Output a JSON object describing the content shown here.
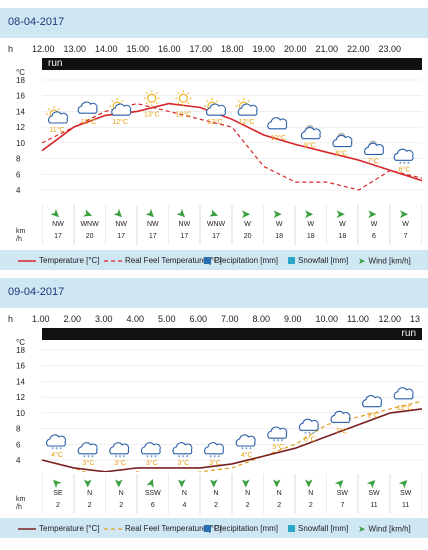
{
  "panels": [
    {
      "date": "08-04-2017",
      "hours_label": "h",
      "hours": [
        "12.00",
        "13.00",
        "14.00",
        "15.00",
        "16.00",
        "17.00",
        "18.00",
        "19.00",
        "20.00",
        "21.00",
        "22.00",
        "23.00"
      ],
      "run_label": "run",
      "unit_label": "°C",
      "y_ticks": [
        "18",
        "16",
        "14",
        "12",
        "10",
        "8",
        "6",
        "4"
      ],
      "icons": [
        {
          "name": "sun-cloud-icon",
          "temp": "11°C"
        },
        {
          "name": "cloud-icon",
          "temp": "12°C"
        },
        {
          "name": "sun-cloud-icon",
          "temp": "12°C"
        },
        {
          "name": "sun-icon",
          "temp": "13°C"
        },
        {
          "name": "sun-icon",
          "temp": "13°C"
        },
        {
          "name": "sun-cloud-icon",
          "temp": "12°C"
        },
        {
          "name": "sun-cloud-icon",
          "temp": "12°C"
        },
        {
          "name": "cloud-icon",
          "temp": "10°C"
        },
        {
          "name": "night-cloud-icon",
          "temp": "9°C"
        },
        {
          "name": "night-cloud-icon",
          "temp": "8°C"
        },
        {
          "name": "night-cloud-icon",
          "temp": "7°C"
        },
        {
          "name": "snow-cloud-icon",
          "temp": "6°C"
        }
      ],
      "wind_dirs": [
        "NW",
        "WNW",
        "NW",
        "NW",
        "NW",
        "WNW",
        "W",
        "W",
        "W",
        "W",
        "W",
        "W"
      ],
      "wind_speeds": [
        "17",
        "20",
        "17",
        "17",
        "17",
        "17",
        "20",
        "18",
        "18",
        "18",
        "6",
        "7"
      ],
      "wind_unit_top": "km",
      "wind_unit_bottom": "/h",
      "legend": {
        "temperature": "Temperature [°C]",
        "real_feel": "Real Feel Temperature [°C]",
        "precipitation": "Precipitation [mm]",
        "snowfall": "Snowfall [mm]",
        "wind": "Wind [km/h]"
      },
      "temperature_line": [
        9,
        12,
        13.5,
        14,
        15,
        14.5,
        13,
        11,
        9.8,
        8.8,
        7.8,
        6.5,
        5.2
      ],
      "realfeel_line": [
        10,
        12,
        14,
        15,
        14,
        13,
        12,
        7,
        5,
        5,
        4,
        6.5,
        5.5
      ]
    },
    {
      "date": "09-04-2017",
      "hours_label": "h",
      "hours": [
        "1.00",
        "2.00",
        "3.00",
        "4.00",
        "5.00",
        "6.00",
        "7.00",
        "8.00",
        "9.00",
        "10.00",
        "11.00",
        "12.00",
        "13"
      ],
      "run_label": "run",
      "unit_label": "°C",
      "y_ticks": [
        "18",
        "16",
        "14",
        "12",
        "10",
        "8",
        "6",
        "4"
      ],
      "icons": [
        {
          "name": "snow-cloud-icon",
          "temp": "4°C"
        },
        {
          "name": "snow-cloud-icon",
          "temp": "3°C"
        },
        {
          "name": "snow-cloud-icon",
          "temp": "3°C"
        },
        {
          "name": "snow-cloud-icon",
          "temp": "3°C"
        },
        {
          "name": "snow-cloud-icon",
          "temp": "3°C"
        },
        {
          "name": "snow-cloud-icon",
          "temp": "3°C"
        },
        {
          "name": "snow-cloud-icon",
          "temp": "4°C"
        },
        {
          "name": "snow-cloud-icon",
          "temp": "5°C"
        },
        {
          "name": "snow-cloud-icon",
          "temp": "6°C"
        },
        {
          "name": "cloud-icon",
          "temp": "7°C"
        },
        {
          "name": "cloud-icon",
          "temp": "9°C"
        },
        {
          "name": "cloud-icon",
          "temp": "10°C"
        }
      ],
      "wind_dirs": [
        "SE",
        "N",
        "N",
        "SSW",
        "N",
        "N",
        "N",
        "N",
        "N",
        "SW",
        "SW",
        "SW"
      ],
      "wind_speeds": [
        "2",
        "2",
        "2",
        "6",
        "4",
        "2",
        "2",
        "2",
        "2",
        "7",
        "11",
        "11"
      ],
      "wind_unit_top": "km",
      "wind_unit_bottom": "/h",
      "legend": {
        "temperature": "Temperature [°C]",
        "real_feel": "Real Feel Temperature [°C]",
        "precipitation": "Precipitation [mm]",
        "snowfall": "Snowfall [mm]",
        "wind": "Wind [km/h]"
      },
      "temperature_line": [
        4,
        3,
        2.5,
        3,
        3,
        3,
        3.5,
        4.5,
        5.5,
        7,
        8.5,
        10,
        10.5
      ],
      "realfeel_line": [
        4,
        3,
        1.5,
        2.5,
        1.5,
        2.5,
        3,
        4.5,
        6,
        8.5,
        9.5,
        10.5,
        11.5
      ]
    }
  ],
  "colors": {
    "temperature_top": "#d6262a",
    "temperature_bottom": "#7a2020",
    "real_feel_top": "#d6262a",
    "real_feel_bottom": "#e0a020",
    "precipitation": "#2a6fb0",
    "snowfall": "#2aa6c8",
    "wind": "#3aa040"
  }
}
